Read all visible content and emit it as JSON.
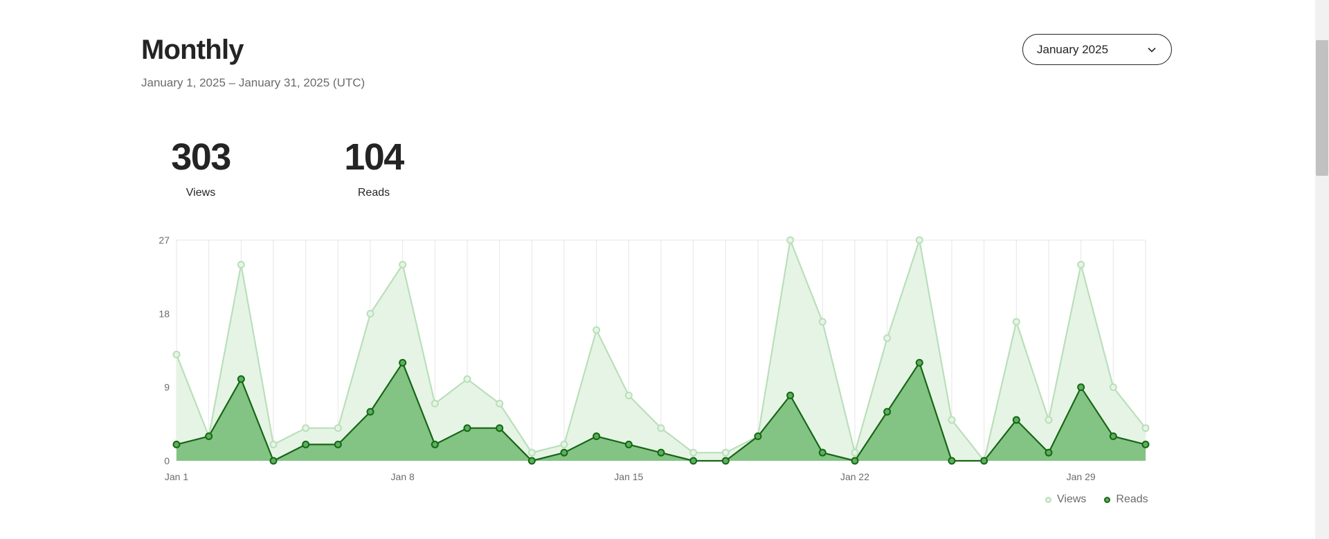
{
  "header": {
    "title": "Monthly",
    "subtitle": "January 1, 2025 – January 31, 2025 (UTC)"
  },
  "month_select": {
    "value": "January 2025",
    "icon": "chevron-down-icon"
  },
  "stats": [
    {
      "value": "303",
      "label": "Views"
    },
    {
      "value": "104",
      "label": "Reads"
    }
  ],
  "legend": [
    {
      "label": "Views"
    },
    {
      "label": "Reads"
    }
  ],
  "colors": {
    "views_fill": "#e6f4e6",
    "views_line": "#b9dfb9",
    "reads_fill": "#83c383",
    "reads_line": "#156615",
    "grid": "#e6e6e6"
  },
  "chart_data": {
    "type": "area",
    "x": [
      1,
      2,
      3,
      4,
      5,
      6,
      7,
      8,
      9,
      10,
      11,
      12,
      13,
      14,
      15,
      16,
      17,
      18,
      19,
      20,
      21,
      22,
      23,
      24,
      25,
      26,
      27,
      28,
      29,
      30,
      31
    ],
    "x_tick_labels": [
      {
        "day": 1,
        "label": "Jan 1"
      },
      {
        "day": 8,
        "label": "Jan 8"
      },
      {
        "day": 15,
        "label": "Jan 15"
      },
      {
        "day": 22,
        "label": "Jan 22"
      },
      {
        "day": 29,
        "label": "Jan 29"
      }
    ],
    "yticks": [
      0,
      9,
      18,
      27
    ],
    "ylim": [
      0,
      27
    ],
    "grid": true,
    "legend_position": "bottom-right",
    "series": [
      {
        "name": "Views",
        "values": [
          13,
          3,
          24,
          2,
          4,
          4,
          18,
          24,
          7,
          10,
          7,
          1,
          2,
          16,
          8,
          4,
          1,
          1,
          3,
          27,
          17,
          1,
          15,
          27,
          5,
          0,
          17,
          5,
          24,
          9,
          4
        ]
      },
      {
        "name": "Reads",
        "values": [
          2,
          3,
          10,
          0,
          2,
          2,
          6,
          12,
          2,
          4,
          4,
          0,
          1,
          3,
          2,
          1,
          0,
          0,
          3,
          8,
          1,
          0,
          6,
          12,
          0,
          0,
          5,
          1,
          9,
          3,
          2
        ]
      }
    ]
  }
}
